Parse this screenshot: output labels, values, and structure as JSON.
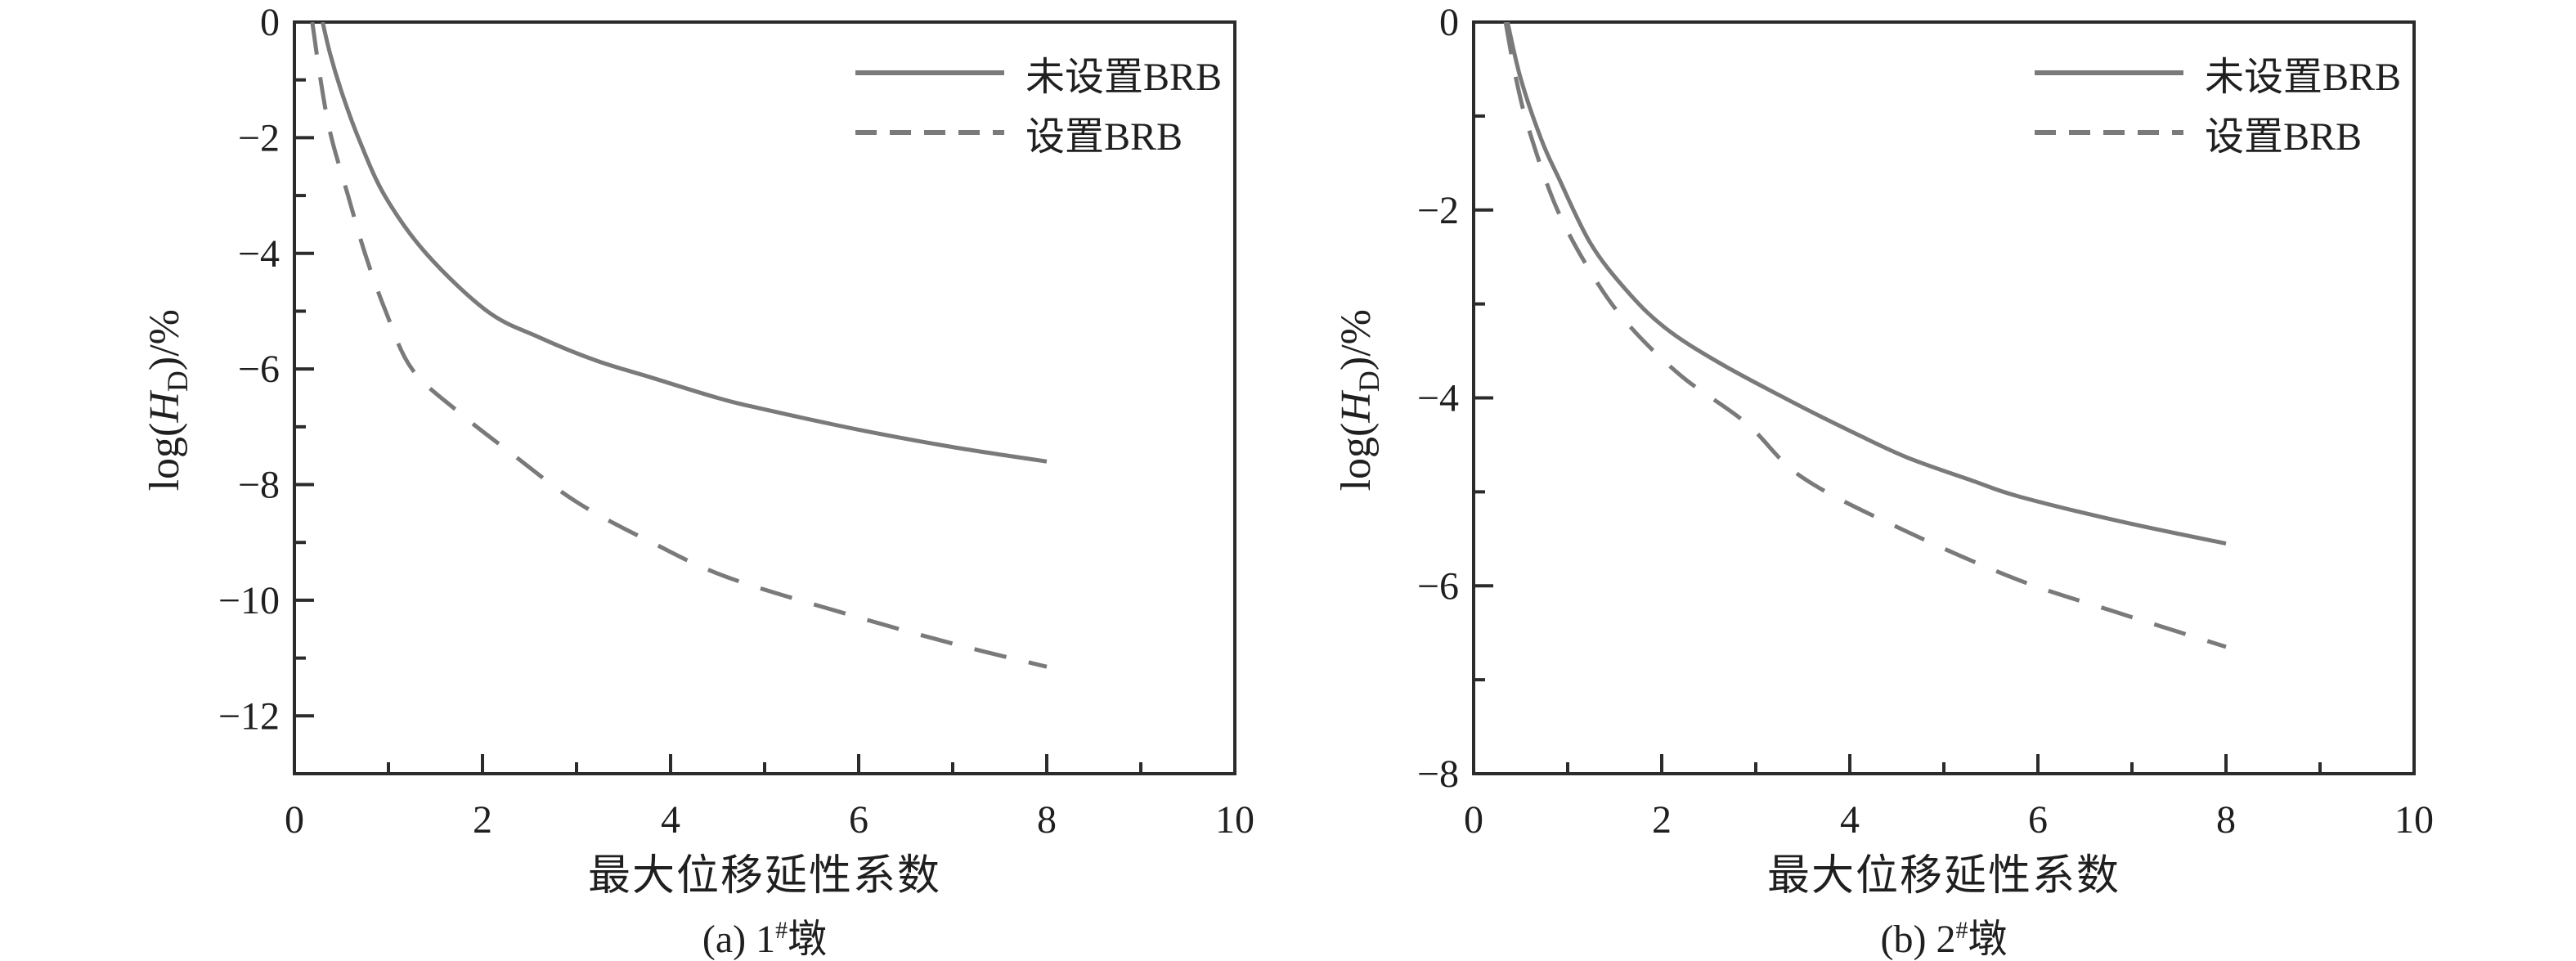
{
  "figure": {
    "background": "#ffffff"
  },
  "colors": {
    "curve": "#7a7a7a",
    "axis": "#2b2b2b",
    "text": "#1f1f1f"
  },
  "labels": {
    "xlabel": "最大位移延性系数",
    "ylabel": {
      "prefix": "log(",
      "var": "H",
      "sub": "D",
      "suffix": ")/%"
    },
    "captions": [
      {
        "pre": "(a) 1",
        "sup": "#",
        "post": "墩"
      },
      {
        "pre": "(b) 2",
        "sup": "#",
        "post": "墩"
      }
    ]
  },
  "chart_data": [
    {
      "type": "line",
      "title": "(a) 1#墩",
      "xlabel": "最大位移延性系数",
      "ylabel": "log(H_D)/%",
      "xlim": [
        0,
        10
      ],
      "ylim": [
        -13,
        0
      ],
      "x_ticks": [
        0,
        2,
        4,
        6,
        8,
        10
      ],
      "x_tick_labels": [
        "0",
        "2",
        "4",
        "6",
        "8",
        "10"
      ],
      "x_minor_ticks": [
        1,
        3,
        5,
        7,
        9
      ],
      "y_ticks": [
        0,
        -2,
        -4,
        -6,
        -8,
        -10,
        -12
      ],
      "y_tick_labels": [
        "0",
        "−2",
        "−4",
        "−6",
        "−8",
        "−10",
        "−12"
      ],
      "y_minor_ticks": [
        -1,
        -3,
        -5,
        -7,
        -9,
        -11
      ],
      "grid": false,
      "legend_position": "upper right",
      "series": [
        {
          "name": "未设置BRB",
          "style": "solid",
          "points": [
            [
              0.3,
              0.0
            ],
            [
              0.38,
              -0.55
            ],
            [
              0.5,
              -1.2
            ],
            [
              0.68,
              -2.0
            ],
            [
              0.96,
              -3.0
            ],
            [
              1.4,
              -4.0
            ],
            [
              2.05,
              -5.0
            ],
            [
              2.6,
              -5.45
            ],
            [
              3.2,
              -5.85
            ],
            [
              3.8,
              -6.15
            ],
            [
              4.5,
              -6.5
            ],
            [
              5.0,
              -6.7
            ],
            [
              6.0,
              -7.05
            ],
            [
              7.0,
              -7.35
            ],
            [
              8.0,
              -7.6
            ]
          ]
        },
        {
          "name": "设置BRB",
          "style": "dashed",
          "points": [
            [
              0.19,
              0.0
            ],
            [
              0.26,
              -0.8
            ],
            [
              0.33,
              -1.5
            ],
            [
              0.41,
              -2.1
            ],
            [
              0.57,
              -3.0
            ],
            [
              0.75,
              -4.0
            ],
            [
              0.97,
              -5.0
            ],
            [
              1.25,
              -6.0
            ],
            [
              1.75,
              -6.75
            ],
            [
              2.3,
              -7.45
            ],
            [
              3.0,
              -8.3
            ],
            [
              3.8,
              -9.0
            ],
            [
              4.6,
              -9.6
            ],
            [
              5.9,
              -10.25
            ],
            [
              7.0,
              -10.75
            ],
            [
              8.0,
              -11.15
            ]
          ]
        }
      ]
    },
    {
      "type": "line",
      "title": "(b) 2#墩",
      "xlabel": "最大位移延性系数",
      "ylabel": "log(H_D)/%",
      "xlim": [
        0,
        10
      ],
      "ylim": [
        -8,
        0
      ],
      "x_ticks": [
        0,
        2,
        4,
        6,
        8,
        10
      ],
      "x_tick_labels": [
        "0",
        "2",
        "4",
        "6",
        "8",
        "10"
      ],
      "x_minor_ticks": [
        1,
        3,
        5,
        7,
        9
      ],
      "y_ticks": [
        0,
        -2,
        -4,
        -6,
        -8
      ],
      "y_tick_labels": [
        "0",
        "−2",
        "−4",
        "−6",
        "−8"
      ],
      "y_minor_ticks": [
        -1,
        -3,
        -5,
        -7
      ],
      "grid": false,
      "legend_position": "upper right",
      "series": [
        {
          "name": "未设置BRB",
          "style": "solid",
          "points": [
            [
              0.36,
              0.0
            ],
            [
              0.5,
              -0.6
            ],
            [
              0.72,
              -1.25
            ],
            [
              0.9,
              -1.65
            ],
            [
              1.24,
              -2.35
            ],
            [
              1.62,
              -2.85
            ],
            [
              2.03,
              -3.25
            ],
            [
              2.6,
              -3.62
            ],
            [
              3.4,
              -4.05
            ],
            [
              4.0,
              -4.35
            ],
            [
              4.6,
              -4.63
            ],
            [
              5.3,
              -4.88
            ],
            [
              5.8,
              -5.05
            ],
            [
              6.9,
              -5.32
            ],
            [
              8.0,
              -5.55
            ]
          ]
        },
        {
          "name": "设置BRB",
          "style": "dashed",
          "points": [
            [
              0.34,
              0.0
            ],
            [
              0.45,
              -0.6
            ],
            [
              0.59,
              -1.15
            ],
            [
              0.87,
              -1.95
            ],
            [
              1.22,
              -2.62
            ],
            [
              1.62,
              -3.19
            ],
            [
              2.2,
              -3.76
            ],
            [
              2.9,
              -4.27
            ],
            [
              3.5,
              -4.85
            ],
            [
              4.6,
              -5.42
            ],
            [
              5.8,
              -5.94
            ],
            [
              6.8,
              -6.27
            ],
            [
              8.0,
              -6.65
            ]
          ]
        }
      ]
    }
  ]
}
